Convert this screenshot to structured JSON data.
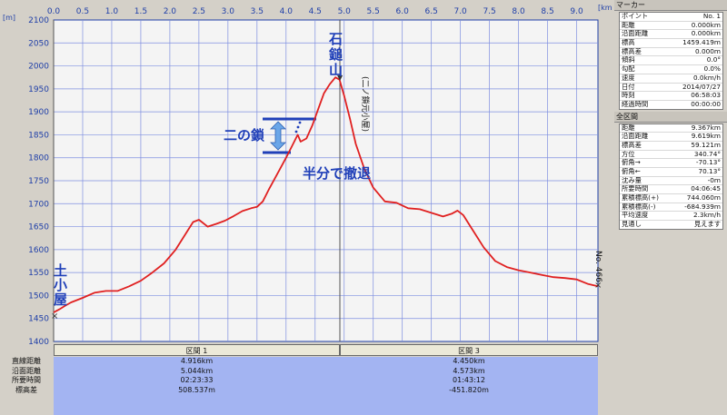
{
  "chart": {
    "unit_m": "[m]",
    "unit_km": "[km]",
    "x_ticks": [
      "0.0",
      "0.5",
      "1.0",
      "1.5",
      "2.0",
      "2.5",
      "3.0",
      "3.5",
      "4.0",
      "4.5",
      "5.0",
      "5.5",
      "6.0",
      "6.5",
      "7.0",
      "7.5",
      "8.0",
      "8.5",
      "9.0"
    ],
    "y_ticks": [
      "2100",
      "2050",
      "2000",
      "1950",
      "1900",
      "1850",
      "1800",
      "1750",
      "1700",
      "1650",
      "1600",
      "1550",
      "1500",
      "1450",
      "1400"
    ],
    "annotations": {
      "summit": "石鎚山",
      "start": "土小屋",
      "chain": "二の鎖",
      "retreat": "半分で撤退",
      "hut": "(二ノ鎖元小屋)",
      "end_marker": "No. 466"
    }
  },
  "chart_data": {
    "type": "line",
    "xlabel": "[km]",
    "ylabel": "[m]",
    "xlim": [
      0,
      9.367
    ],
    "ylim": [
      1400,
      2100
    ],
    "x": [
      0.0,
      0.1,
      0.2,
      0.3,
      0.5,
      0.7,
      0.9,
      1.1,
      1.3,
      1.5,
      1.7,
      1.9,
      2.1,
      2.3,
      2.4,
      2.5,
      2.55,
      2.65,
      2.8,
      2.95,
      3.1,
      3.25,
      3.4,
      3.5,
      3.6,
      3.7,
      3.85,
      4.0,
      4.1,
      4.2,
      4.25,
      4.35,
      4.45,
      4.55,
      4.65,
      4.75,
      4.85,
      4.92,
      5.0,
      5.1,
      5.2,
      5.35,
      5.5,
      5.7,
      5.9,
      6.1,
      6.3,
      6.5,
      6.7,
      6.85,
      6.95,
      7.05,
      7.2,
      7.4,
      7.6,
      7.8,
      8.0,
      8.2,
      8.4,
      8.6,
      8.8,
      9.0,
      9.2,
      9.367
    ],
    "y": [
      1463,
      1470,
      1478,
      1485,
      1495,
      1506,
      1510,
      1510,
      1520,
      1532,
      1550,
      1570,
      1600,
      1640,
      1660,
      1665,
      1660,
      1650,
      1656,
      1663,
      1673,
      1684,
      1690,
      1693,
      1705,
      1730,
      1765,
      1800,
      1825,
      1850,
      1835,
      1842,
      1870,
      1905,
      1940,
      1960,
      1975,
      1970,
      1935,
      1885,
      1830,
      1775,
      1735,
      1705,
      1702,
      1690,
      1688,
      1680,
      1672,
      1678,
      1685,
      1675,
      1645,
      1605,
      1575,
      1562,
      1555,
      1550,
      1545,
      1540,
      1538,
      1535,
      1525,
      1520
    ]
  },
  "sections": {
    "labels": [
      "直線距離",
      "沿面距離",
      "所要時間",
      "標高差"
    ],
    "columns": [
      {
        "title": "区間 1",
        "values": [
          "4.916km",
          "5.044km",
          "02:23:33",
          "508.537m"
        ]
      },
      {
        "title": "区間 3",
        "values": [
          "4.450km",
          "4.573km",
          "01:43:12",
          "-451.820m"
        ]
      }
    ]
  },
  "marker_panel": {
    "title": "マーカー",
    "rows": [
      {
        "label": "ポイント",
        "value": "No. 1"
      },
      {
        "label": "距離",
        "value": "0.000km"
      },
      {
        "label": "沿面距離",
        "value": "0.000km"
      },
      {
        "label": "標高",
        "value": "1459.419m"
      },
      {
        "label": "標高差",
        "value": "0.000m"
      },
      {
        "label": "傾斜",
        "value": "0.0°"
      },
      {
        "label": "勾配",
        "value": "0.0%"
      },
      {
        "label": "速度",
        "value": "0.0km/h"
      },
      {
        "label": "日付",
        "value": "2014/07/27"
      },
      {
        "label": "時刻",
        "value": "06:58:03"
      },
      {
        "label": "経過時間",
        "value": "00:00:00"
      }
    ]
  },
  "total_panel": {
    "title": "全区間",
    "rows": [
      {
        "label": "距離",
        "value": "9.367km"
      },
      {
        "label": "沿面距離",
        "value": "9.619km"
      },
      {
        "label": "標高差",
        "value": "59.121m"
      },
      {
        "label": "方位",
        "value": "340.74°"
      },
      {
        "label": "俯角→",
        "value": "-70.13°"
      },
      {
        "label": "俯角←",
        "value": "70.13°"
      },
      {
        "label": "沈み量",
        "value": "-0m"
      },
      {
        "label": "所要時間",
        "value": "04:06:45"
      },
      {
        "label": "累積標高(+)",
        "value": "744.060m"
      },
      {
        "label": "累積標高(-)",
        "value": "-684.939m"
      },
      {
        "label": "平均速度",
        "value": "2.3km/h"
      },
      {
        "label": "見通し",
        "value": "見えます"
      }
    ]
  },
  "colors": {
    "plot_bg": "#f4f4f4",
    "grid": "#5a6fd8",
    "line": "#e02020",
    "accent": "#1f3fb8",
    "table_bg": "#a3b4f2"
  }
}
